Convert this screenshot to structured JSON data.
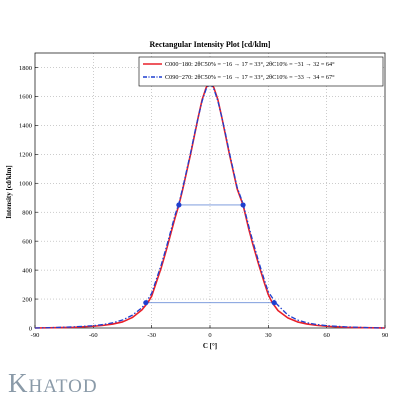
{
  "chart_data": {
    "type": "line",
    "title": "Rectangular Intensity Plot [cd/klm]",
    "xlabel": "C [°]",
    "ylabel": "Intensity [cd/klm]",
    "xlim": [
      -90,
      90
    ],
    "ylim": [
      0,
      1900
    ],
    "xticks": [
      -90,
      -60,
      -30,
      0,
      30,
      60,
      90
    ],
    "yticks": [
      0,
      200,
      400,
      600,
      800,
      1000,
      1200,
      1400,
      1600,
      1800
    ],
    "grid": true,
    "legend_position": "top-right",
    "series": [
      {
        "name": "C000-180",
        "color": "#e8202a",
        "style": "solid",
        "legend_label": "C000−180: 2θC50% = −16 → 17 = 33°, 2θC10% = −31 → 32 = 64°",
        "points": [
          [
            -90,
            0
          ],
          [
            -80,
            2
          ],
          [
            -70,
            5
          ],
          [
            -60,
            12
          ],
          [
            -55,
            18
          ],
          [
            -50,
            27
          ],
          [
            -45,
            42
          ],
          [
            -40,
            72
          ],
          [
            -35,
            125
          ],
          [
            -32,
            175
          ],
          [
            -30,
            220
          ],
          [
            -28,
            300
          ],
          [
            -25,
            420
          ],
          [
            -22,
            560
          ],
          [
            -20,
            660
          ],
          [
            -18,
            760
          ],
          [
            -16,
            850
          ],
          [
            -14,
            960
          ],
          [
            -12,
            1080
          ],
          [
            -10,
            1200
          ],
          [
            -8,
            1330
          ],
          [
            -6,
            1460
          ],
          [
            -4,
            1580
          ],
          [
            -2,
            1660
          ],
          [
            0,
            1700
          ],
          [
            2,
            1660
          ],
          [
            4,
            1580
          ],
          [
            6,
            1460
          ],
          [
            8,
            1330
          ],
          [
            10,
            1200
          ],
          [
            12,
            1080
          ],
          [
            14,
            960
          ],
          [
            17,
            850
          ],
          [
            20,
            680
          ],
          [
            22,
            580
          ],
          [
            25,
            440
          ],
          [
            28,
            310
          ],
          [
            30,
            230
          ],
          [
            32,
            175
          ],
          [
            35,
            120
          ],
          [
            40,
            70
          ],
          [
            45,
            42
          ],
          [
            50,
            27
          ],
          [
            55,
            18
          ],
          [
            60,
            12
          ],
          [
            70,
            5
          ],
          [
            80,
            2
          ],
          [
            90,
            0
          ]
        ]
      },
      {
        "name": "C090-270",
        "color": "#1f3fcf",
        "style": "dash-dot",
        "legend_label": "C090−270: 2θC50% = −16 → 17 = 33°, 2θC10% = −33 → 34 = 67°",
        "points": [
          [
            -90,
            0
          ],
          [
            -80,
            3
          ],
          [
            -70,
            8
          ],
          [
            -60,
            16
          ],
          [
            -55,
            24
          ],
          [
            -50,
            36
          ],
          [
            -45,
            55
          ],
          [
            -40,
            88
          ],
          [
            -35,
            140
          ],
          [
            -33,
            175
          ],
          [
            -30,
            240
          ],
          [
            -28,
            320
          ],
          [
            -25,
            440
          ],
          [
            -22,
            580
          ],
          [
            -20,
            680
          ],
          [
            -18,
            780
          ],
          [
            -16,
            860
          ],
          [
            -14,
            970
          ],
          [
            -12,
            1090
          ],
          [
            -10,
            1210
          ],
          [
            -8,
            1340
          ],
          [
            -6,
            1460
          ],
          [
            -4,
            1570
          ],
          [
            -2,
            1650
          ],
          [
            0,
            1690
          ],
          [
            2,
            1650
          ],
          [
            4,
            1570
          ],
          [
            6,
            1460
          ],
          [
            8,
            1340
          ],
          [
            10,
            1210
          ],
          [
            12,
            1090
          ],
          [
            14,
            970
          ],
          [
            17,
            860
          ],
          [
            20,
            700
          ],
          [
            22,
            600
          ],
          [
            25,
            460
          ],
          [
            28,
            330
          ],
          [
            30,
            250
          ],
          [
            34,
            170
          ],
          [
            37,
            130
          ],
          [
            40,
            90
          ],
          [
            45,
            55
          ],
          [
            50,
            36
          ],
          [
            55,
            24
          ],
          [
            60,
            16
          ],
          [
            70,
            8
          ],
          [
            80,
            3
          ],
          [
            90,
            0
          ]
        ]
      }
    ],
    "markers": [
      {
        "x": -16,
        "y": 850
      },
      {
        "x": 17,
        "y": 850
      },
      {
        "x": -33,
        "y": 175
      },
      {
        "x": 33,
        "y": 175
      }
    ],
    "hlines": [
      {
        "x1": -16,
        "x2": 17,
        "y": 850
      },
      {
        "x1": -33,
        "x2": 33,
        "y": 175
      }
    ]
  },
  "logo": {
    "text": "KHATOD",
    "first": "K",
    "rest": "HATOD"
  }
}
